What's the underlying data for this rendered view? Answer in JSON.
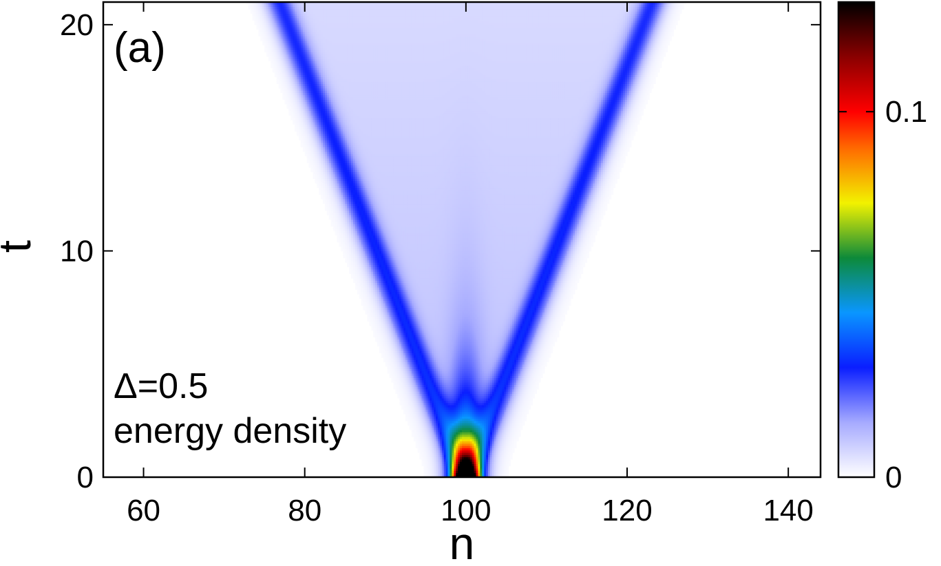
{
  "chart_data": {
    "type": "heatmap",
    "panel_label": "(a)",
    "annotation_lines": [
      "Δ=0.5",
      "energy density"
    ],
    "xlabel": "n",
    "ylabel": "t",
    "xlim": [
      55,
      144
    ],
    "ylim": [
      0,
      21
    ],
    "xticks": [
      60,
      80,
      100,
      120,
      140
    ],
    "xtick_labels": [
      "60",
      "80",
      "100",
      "120",
      "140"
    ],
    "yticks": [
      0,
      10,
      20
    ],
    "ytick_labels": [
      "0",
      "10",
      "20"
    ],
    "colorbar": {
      "range": [
        0,
        0.13
      ],
      "ticks": [
        0,
        0.1
      ],
      "tick_labels": [
        "0",
        "0.1"
      ],
      "colormap": [
        {
          "v": 0.0,
          "color": "#ffffff"
        },
        {
          "v": 0.015,
          "color": "#a6aaff"
        },
        {
          "v": 0.03,
          "color": "#0a1eff"
        },
        {
          "v": 0.045,
          "color": "#0a96ff"
        },
        {
          "v": 0.06,
          "color": "#0d8a3a"
        },
        {
          "v": 0.075,
          "color": "#f2f200"
        },
        {
          "v": 0.09,
          "color": "#ff6a00"
        },
        {
          "v": 0.1,
          "color": "#ff0000"
        },
        {
          "v": 0.115,
          "color": "#8a0000"
        },
        {
          "v": 0.13,
          "color": "#000000"
        }
      ]
    },
    "grid": false,
    "light_cone": {
      "center_n": 100,
      "front_speed": 1.1,
      "initial_peak": 0.13
    }
  }
}
